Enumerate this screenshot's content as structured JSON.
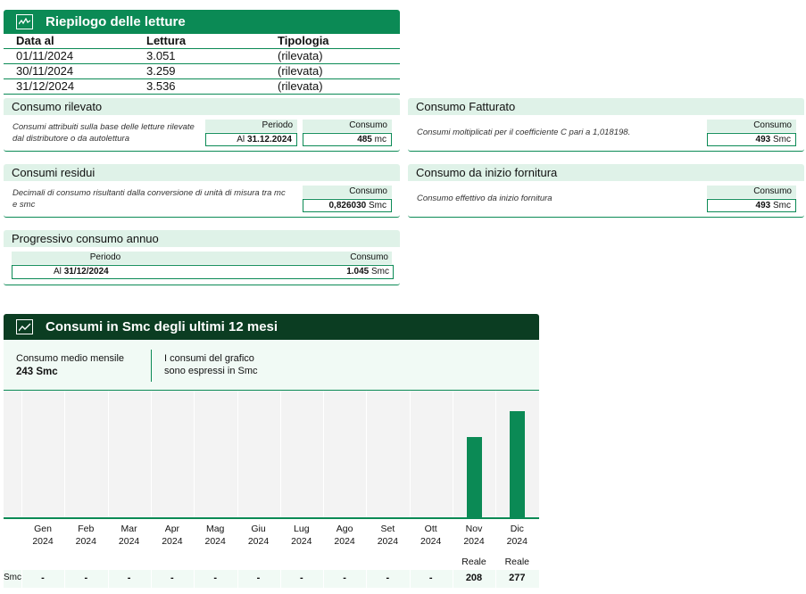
{
  "riepilogo": {
    "title": "Riepilogo delle letture",
    "icon": "chart-icon",
    "headers": [
      "Data al",
      "Lettura",
      "Tipologia"
    ],
    "rows": [
      [
        "01/11/2024",
        "3.051",
        "(rilevata)"
      ],
      [
        "30/11/2024",
        "3.259",
        "(rilevata)"
      ],
      [
        "31/12/2024",
        "3.536",
        "(rilevata)"
      ]
    ]
  },
  "consumo_rilevato": {
    "title": "Consumo rilevato",
    "description": "Consumi attribuiti sulla base delle letture rilevate dal distributore o da autolettura",
    "periodo_label": "Periodo",
    "periodo_prefix": "Al",
    "periodo_value": "31.12.2024",
    "consumo_label": "Consumo",
    "consumo_value": "485",
    "consumo_unit": "mc"
  },
  "consumo_fatturato": {
    "title": "Consumo Fatturato",
    "description": "Consumi moltiplicati per il coefficiente C pari a 1,018198.",
    "consumo_label": "Consumo",
    "consumo_value": "493",
    "consumo_unit": "Smc"
  },
  "consumi_residui": {
    "title": "Consumi residui",
    "description": "Decimali di consumo risultanti dalla conversione di unità di misura tra mc e smc",
    "consumo_label": "Consumo",
    "consumo_value": "0,826030",
    "consumo_unit": "Smc"
  },
  "consumo_inizio": {
    "title": "Consumo da inizio fornitura",
    "description": "Consumo effettivo da inizio fornitura",
    "consumo_label": "Consumo",
    "consumo_value": "493",
    "consumo_unit": "Smc"
  },
  "progressivo": {
    "title": "Progressivo consumo annuo",
    "periodo_label": "Periodo",
    "periodo_prefix": "Al",
    "periodo_value": "31/12/2024",
    "consumo_label": "Consumo",
    "consumo_value": "1.045",
    "consumo_unit": "Smc"
  },
  "chart_section": {
    "title": "Consumi in Smc degli ultimi 12 mesi",
    "icon": "line-chart-icon",
    "medio_label": "Consumo medio mensile",
    "medio_value": "243 Smc",
    "note_line1": "I consumi del grafico",
    "note_line2": "sono espressi in Smc",
    "row_label": "Smc",
    "colors": {
      "bar": "#0b8a55",
      "header": "#0b3d22"
    }
  },
  "chart_data": {
    "type": "bar",
    "categories": [
      "Gen 2024",
      "Feb 2024",
      "Mar 2024",
      "Apr 2024",
      "Mag 2024",
      "Giu 2024",
      "Lug 2024",
      "Ago 2024",
      "Set 2024",
      "Ott 2024",
      "Nov 2024",
      "Dic 2024"
    ],
    "months": [
      "Gen",
      "Feb",
      "Mar",
      "Apr",
      "Mag",
      "Giu",
      "Lug",
      "Ago",
      "Set",
      "Ott",
      "Nov",
      "Dic"
    ],
    "year": "2024",
    "values": [
      null,
      null,
      null,
      null,
      null,
      null,
      null,
      null,
      null,
      null,
      208,
      277
    ],
    "value_labels": [
      "-",
      "-",
      "-",
      "-",
      "-",
      "-",
      "-",
      "-",
      "-",
      "-",
      "208",
      "277"
    ],
    "status": [
      "",
      "",
      "",
      "",
      "",
      "",
      "",
      "",
      "",
      "",
      "Reale",
      "Reale"
    ],
    "ylim": [
      0,
      330
    ]
  }
}
